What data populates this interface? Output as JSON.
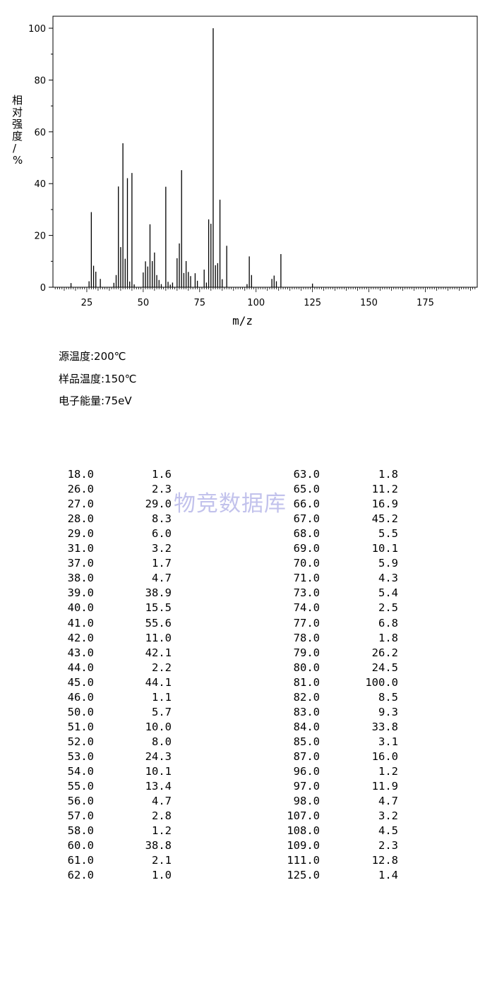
{
  "chart_data": {
    "type": "bar",
    "xlabel": "m/z",
    "ylabel": "相对强度/%",
    "xlim": [
      10,
      198
    ],
    "ylim": [
      0,
      100
    ],
    "x_ticks": [
      25,
      50,
      75,
      100,
      125,
      150,
      175
    ],
    "y_ticks": [
      0,
      20,
      40,
      60,
      80,
      100
    ],
    "x": [
      18,
      26,
      27,
      28,
      29,
      31,
      37,
      38,
      39,
      40,
      41,
      42,
      43,
      44,
      45,
      46,
      50,
      51,
      52,
      53,
      54,
      55,
      56,
      57,
      58,
      60,
      61,
      62,
      63,
      65,
      66,
      67,
      68,
      69,
      70,
      71,
      73,
      74,
      77,
      78,
      79,
      80,
      81,
      82,
      83,
      84,
      85,
      87,
      96,
      97,
      98,
      107,
      108,
      109,
      111,
      125
    ],
    "values": [
      1.6,
      2.3,
      29.0,
      8.3,
      6.0,
      3.2,
      1.7,
      4.7,
      38.9,
      15.5,
      55.6,
      11.0,
      42.1,
      2.2,
      44.1,
      1.1,
      5.7,
      10.0,
      8.0,
      24.3,
      10.1,
      13.4,
      4.7,
      2.8,
      1.2,
      38.8,
      2.1,
      1.0,
      1.8,
      11.2,
      16.9,
      45.2,
      5.5,
      10.1,
      5.9,
      4.3,
      5.4,
      2.5,
      6.8,
      1.8,
      26.2,
      24.5,
      100.0,
      8.5,
      9.3,
      33.8,
      3.1,
      16.0,
      1.2,
      11.9,
      4.7,
      3.2,
      4.5,
      2.3,
      12.8,
      1.4
    ]
  },
  "conditions": [
    "源温度:200℃",
    "样品温度:150℃",
    "电子能量:75eV"
  ],
  "table": {
    "left": [
      [
        "18.0",
        "1.6"
      ],
      [
        "26.0",
        "2.3"
      ],
      [
        "27.0",
        "29.0"
      ],
      [
        "28.0",
        "8.3"
      ],
      [
        "29.0",
        "6.0"
      ],
      [
        "31.0",
        "3.2"
      ],
      [
        "37.0",
        "1.7"
      ],
      [
        "38.0",
        "4.7"
      ],
      [
        "39.0",
        "38.9"
      ],
      [
        "40.0",
        "15.5"
      ],
      [
        "41.0",
        "55.6"
      ],
      [
        "42.0",
        "11.0"
      ],
      [
        "43.0",
        "42.1"
      ],
      [
        "44.0",
        "2.2"
      ],
      [
        "45.0",
        "44.1"
      ],
      [
        "46.0",
        "1.1"
      ],
      [
        "50.0",
        "5.7"
      ],
      [
        "51.0",
        "10.0"
      ],
      [
        "52.0",
        "8.0"
      ],
      [
        "53.0",
        "24.3"
      ],
      [
        "54.0",
        "10.1"
      ],
      [
        "55.0",
        "13.4"
      ],
      [
        "56.0",
        "4.7"
      ],
      [
        "57.0",
        "2.8"
      ],
      [
        "58.0",
        "1.2"
      ],
      [
        "60.0",
        "38.8"
      ],
      [
        "61.0",
        "2.1"
      ],
      [
        "62.0",
        "1.0"
      ]
    ],
    "right": [
      [
        "63.0",
        "1.8"
      ],
      [
        "65.0",
        "11.2"
      ],
      [
        "66.0",
        "16.9"
      ],
      [
        "67.0",
        "45.2"
      ],
      [
        "68.0",
        "5.5"
      ],
      [
        "69.0",
        "10.1"
      ],
      [
        "70.0",
        "5.9"
      ],
      [
        "71.0",
        "4.3"
      ],
      [
        "73.0",
        "5.4"
      ],
      [
        "74.0",
        "2.5"
      ],
      [
        "77.0",
        "6.8"
      ],
      [
        "78.0",
        "1.8"
      ],
      [
        "79.0",
        "26.2"
      ],
      [
        "80.0",
        "24.5"
      ],
      [
        "81.0",
        "100.0"
      ],
      [
        "82.0",
        "8.5"
      ],
      [
        "83.0",
        "9.3"
      ],
      [
        "84.0",
        "33.8"
      ],
      [
        "85.0",
        "3.1"
      ],
      [
        "87.0",
        "16.0"
      ],
      [
        "96.0",
        "1.2"
      ],
      [
        "97.0",
        "11.9"
      ],
      [
        "98.0",
        "4.7"
      ],
      [
        "107.0",
        "3.2"
      ],
      [
        "108.0",
        "4.5"
      ],
      [
        "109.0",
        "2.3"
      ],
      [
        "111.0",
        "12.8"
      ],
      [
        "125.0",
        "1.4"
      ]
    ]
  },
  "watermark": "物竞数据库"
}
